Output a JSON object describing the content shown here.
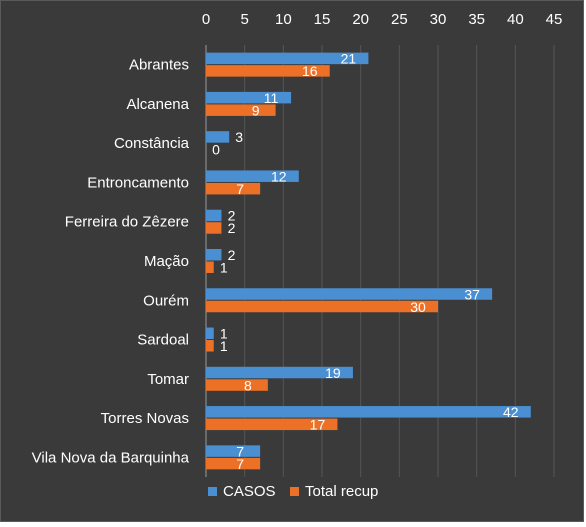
{
  "chart_data": {
    "type": "bar",
    "orientation": "horizontal",
    "categories": [
      "Abrantes",
      "Alcanena",
      "Constância",
      "Entroncamento",
      "Ferreira do Zêzere",
      "Mação",
      "Ourém",
      "Sardoal",
      "Tomar",
      "Torres Novas",
      "Vila Nova da Barquinha"
    ],
    "series": [
      {
        "name": "CASOS",
        "color": "#4a8fd1",
        "values": [
          21,
          11,
          3,
          12,
          2,
          2,
          37,
          1,
          19,
          42,
          7
        ]
      },
      {
        "name": "Total recup",
        "color": "#ec7127",
        "values": [
          16,
          9,
          0,
          7,
          2,
          1,
          30,
          1,
          8,
          17,
          7
        ]
      }
    ],
    "xlim": [
      0,
      45
    ],
    "ticks": [
      0,
      5,
      10,
      15,
      20,
      25,
      30,
      35,
      40,
      45
    ],
    "x_axis_position": "top",
    "legend_position": "bottom",
    "data_labels": true,
    "grid": true
  }
}
